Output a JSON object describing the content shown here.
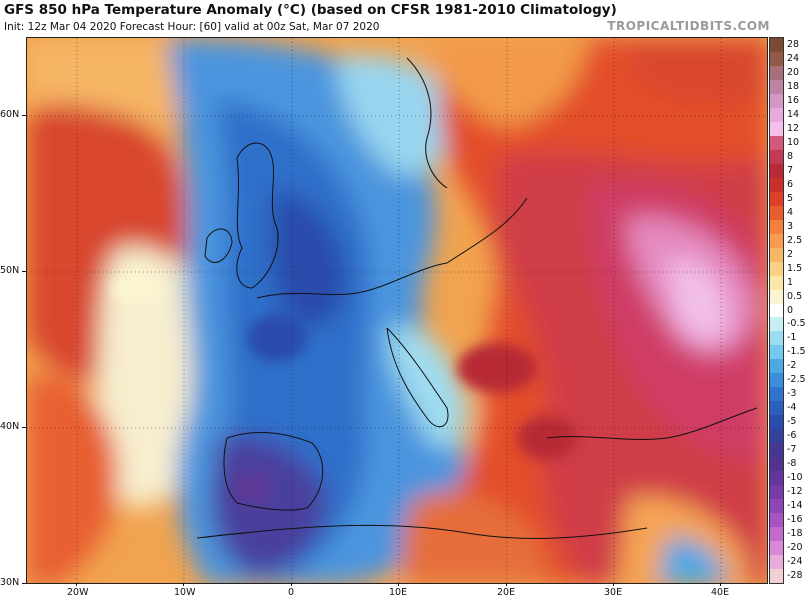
{
  "header": {
    "title": "GFS 850 hPa Temperature Anomaly (°C) (based on CFSR 1981-2010 Climatology)",
    "subtitle": "Init: 12z Mar 04 2020   Forecast Hour: [60]   valid at 00z Sat, Mar 07 2020",
    "credit": "TROPICALTIDBITS.COM"
  },
  "axes": {
    "lat_labels": [
      "60N",
      "50N",
      "40N",
      "30N"
    ],
    "lon_labels": [
      "20W",
      "10W",
      "0",
      "10E",
      "20E",
      "30E",
      "40E"
    ]
  },
  "legend": {
    "labels": [
      "28",
      "24",
      "20",
      "18",
      "16",
      "14",
      "12",
      "10",
      "8",
      "7",
      "6",
      "5",
      "4",
      "3",
      "2.5",
      "2",
      "1.5",
      "1",
      "0.5",
      "0",
      "-0.5",
      "-1",
      "-1.5",
      "-2",
      "-2.5",
      "-3",
      "-4",
      "-5",
      "-6",
      "-7",
      "-8",
      "-10",
      "-12",
      "-14",
      "-16",
      "-18",
      "-20",
      "-24",
      "-28"
    ],
    "colors": [
      "#7a4a32",
      "#925a46",
      "#a8707a",
      "#bd83a2",
      "#d496c5",
      "#e8a9df",
      "#f2c0ea",
      "#d4587a",
      "#c23a53",
      "#b72a36",
      "#c8302b",
      "#dc4128",
      "#e95d2c",
      "#f3803d",
      "#f69c50",
      "#f8b767",
      "#f9d083",
      "#fae6a8",
      "#fbf4d2",
      "#ffffff",
      "#c6eef3",
      "#98def0",
      "#72c8ee",
      "#4fa8e4",
      "#3b8cd9",
      "#2f74cc",
      "#2a5fbd",
      "#2a4cab",
      "#33419d",
      "#443892",
      "#533390",
      "#64359d",
      "#763ba8",
      "#8d45b8",
      "#a754c2",
      "#c46acd",
      "#d988d6",
      "#e7acdc",
      "#f2cfd2"
    ]
  },
  "fields": {
    "atlantic": "#f5e0b0",
    "biscay_cold": "#4d93df",
    "iberia_deep": "#3a57b8",
    "east_warm": "#e34e2c",
    "east_hot": "#cf3e66",
    "ukraine_pink": "#e58ac0"
  }
}
